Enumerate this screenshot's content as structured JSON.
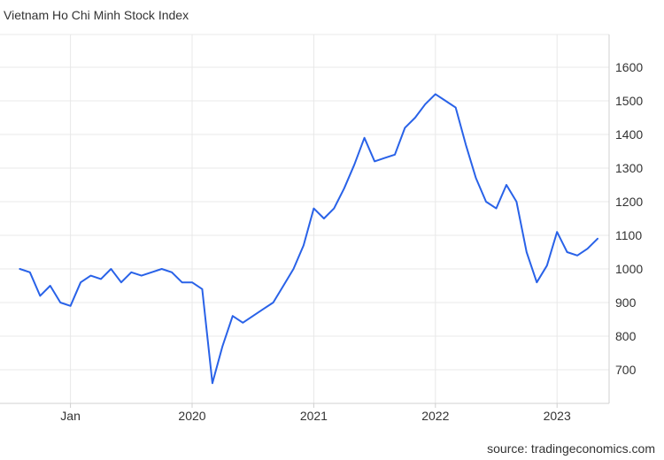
{
  "title": "Vietnam Ho Chi Minh Stock Index",
  "source": "source: tradingeconomics.com",
  "chart_data": {
    "type": "line",
    "title": "Vietnam Ho Chi Minh Stock Index",
    "xlabel": "",
    "ylabel": "",
    "ylim": [
      600,
      1700
    ],
    "yticks": [
      700,
      800,
      900,
      1000,
      1100,
      1200,
      1300,
      1400,
      1500,
      1600
    ],
    "xticks": [
      {
        "label": "Jan",
        "x": "2019-01"
      },
      {
        "label": "2020",
        "x": "2020-01"
      },
      {
        "label": "2021",
        "x": "2021-01"
      },
      {
        "label": "2022",
        "x": "2022-01"
      },
      {
        "label": "2023",
        "x": "2023-01"
      }
    ],
    "grid": true,
    "line_color": "#2962e8",
    "series": [
      {
        "x": [
          "2018-08",
          "2018-09",
          "2018-10",
          "2018-11",
          "2018-12",
          "2019-01",
          "2019-02",
          "2019-03",
          "2019-04",
          "2019-05",
          "2019-06",
          "2019-07",
          "2019-08",
          "2019-09",
          "2019-10",
          "2019-11",
          "2019-12",
          "2020-01",
          "2020-02",
          "2020-03",
          "2020-04",
          "2020-05",
          "2020-06",
          "2020-07",
          "2020-08",
          "2020-09",
          "2020-10",
          "2020-11",
          "2020-12",
          "2021-01",
          "2021-02",
          "2021-03",
          "2021-04",
          "2021-05",
          "2021-06",
          "2021-07",
          "2021-08",
          "2021-09",
          "2021-10",
          "2021-11",
          "2021-12",
          "2022-01",
          "2022-02",
          "2022-03",
          "2022-04",
          "2022-05",
          "2022-06",
          "2022-07",
          "2022-08",
          "2022-09",
          "2022-10",
          "2022-11",
          "2022-12",
          "2023-01",
          "2023-02",
          "2023-03",
          "2023-04",
          "2023-05"
        ],
        "values": [
          1000,
          990,
          920,
          950,
          900,
          890,
          960,
          980,
          970,
          1000,
          960,
          990,
          980,
          990,
          1000,
          990,
          960,
          960,
          940,
          660,
          770,
          860,
          840,
          860,
          880,
          900,
          950,
          1000,
          1070,
          1180,
          1150,
          1180,
          1240,
          1310,
          1390,
          1320,
          1330,
          1340,
          1420,
          1450,
          1490,
          1520,
          1500,
          1480,
          1370,
          1270,
          1200,
          1180,
          1250,
          1200,
          1050,
          960,
          1010,
          1110,
          1050,
          1040,
          1060,
          1090
        ]
      }
    ]
  }
}
